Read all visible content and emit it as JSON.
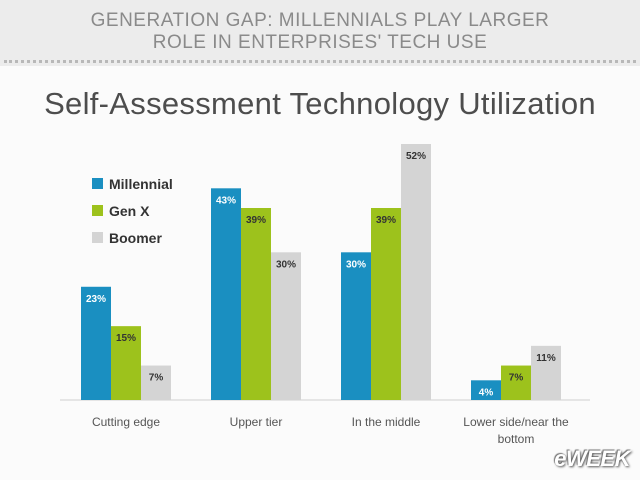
{
  "header": {
    "line1": "GENERATION GAP: MILLENNIALS PLAY LARGER",
    "line2": "ROLE IN ENTERPRISES' TECH USE"
  },
  "logo_text": "eWEEK",
  "chart_data": {
    "type": "bar",
    "title": "Self-Assessment Technology Utilization",
    "categories": [
      "Cutting edge",
      "Upper tier",
      "In the middle",
      "Lower side/near the bottom"
    ],
    "series": [
      {
        "name": "Millennial",
        "color": "#1a8fc1",
        "values": [
          23,
          43,
          30,
          4
        ]
      },
      {
        "name": "Gen X",
        "color": "#9dc21c",
        "values": [
          15,
          39,
          39,
          7
        ]
      },
      {
        "name": "Boomer",
        "color": "#d4d4d4",
        "values": [
          7,
          30,
          52,
          11
        ]
      }
    ],
    "value_suffix": "%",
    "ylim": [
      0,
      52
    ],
    "legend_position": "top-left",
    "grid": false
  }
}
